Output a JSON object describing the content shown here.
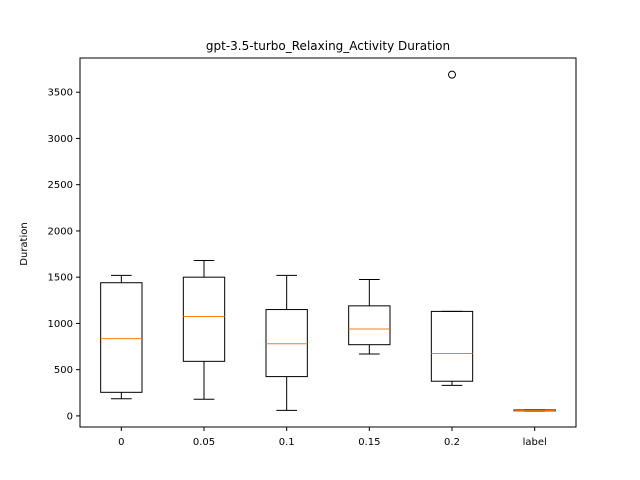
{
  "chart_data": {
    "type": "box",
    "title": "gpt-3.5-turbo_Relaxing_Activity Duration",
    "xlabel": "",
    "ylabel": "Duration",
    "ylim": [
      -120,
      3870
    ],
    "yticks": [
      0,
      500,
      1000,
      1500,
      2000,
      2500,
      3000,
      3500
    ],
    "grid": false,
    "categories": [
      "0",
      "0.05",
      "0.1",
      "0.15",
      "0.2",
      "label"
    ],
    "boxes": [
      {
        "category": "0",
        "whisker_low": 185,
        "q1": 255,
        "median": 835,
        "q3": 1440,
        "whisker_high": 1520,
        "outliers": []
      },
      {
        "category": "0.05",
        "whisker_low": 180,
        "q1": 590,
        "median": 1075,
        "q3": 1500,
        "whisker_high": 1680,
        "outliers": []
      },
      {
        "category": "0.1",
        "whisker_low": 60,
        "q1": 425,
        "median": 780,
        "q3": 1150,
        "whisker_high": 1520,
        "outliers": []
      },
      {
        "category": "0.15",
        "whisker_low": 670,
        "q1": 770,
        "median": 940,
        "q3": 1190,
        "whisker_high": 1475,
        "outliers": []
      },
      {
        "category": "0.2",
        "whisker_low": 330,
        "q1": 375,
        "median": 675,
        "q3": 1130,
        "whisker_high": 1130,
        "outliers": [
          3690
        ]
      },
      {
        "category": "label",
        "whisker_low": 55,
        "q1": 55,
        "median": 60,
        "q3": 65,
        "whisker_high": 65,
        "outliers": []
      }
    ],
    "colors": {
      "box": "#000000",
      "median": "#ff7f0e",
      "outlier": "#000000"
    }
  }
}
